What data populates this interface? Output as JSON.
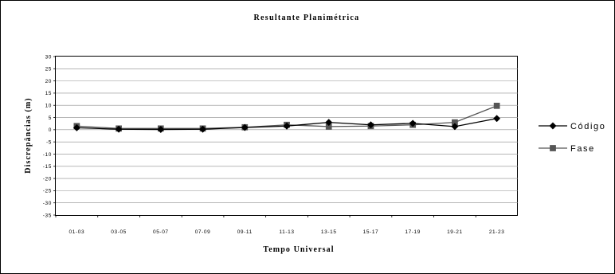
{
  "chart_data": {
    "type": "line",
    "title": "Resultante Planimétrica",
    "xlabel": "Tempo Universal",
    "ylabel": "Discrepâncias (m)",
    "ylim": [
      -35,
      30
    ],
    "ytick_step": 5,
    "grid": true,
    "legend_position": "right",
    "categories": [
      "01-03",
      "03-05",
      "05-07",
      "07-09",
      "09-11",
      "11-13",
      "13-15",
      "15-17",
      "17-19",
      "19-21",
      "21-23"
    ],
    "series": [
      {
        "name": "Código",
        "marker": "diamond",
        "color": "#000000",
        "values": [
          0.8,
          0.2,
          0.1,
          0.2,
          0.9,
          1.5,
          3.0,
          2.0,
          2.6,
          1.3,
          4.6
        ]
      },
      {
        "name": "Fase",
        "marker": "square",
        "color": "#555555",
        "values": [
          1.5,
          0.5,
          0.5,
          0.5,
          1.0,
          2.0,
          1.3,
          1.5,
          2.0,
          3.0,
          9.8
        ]
      }
    ]
  }
}
